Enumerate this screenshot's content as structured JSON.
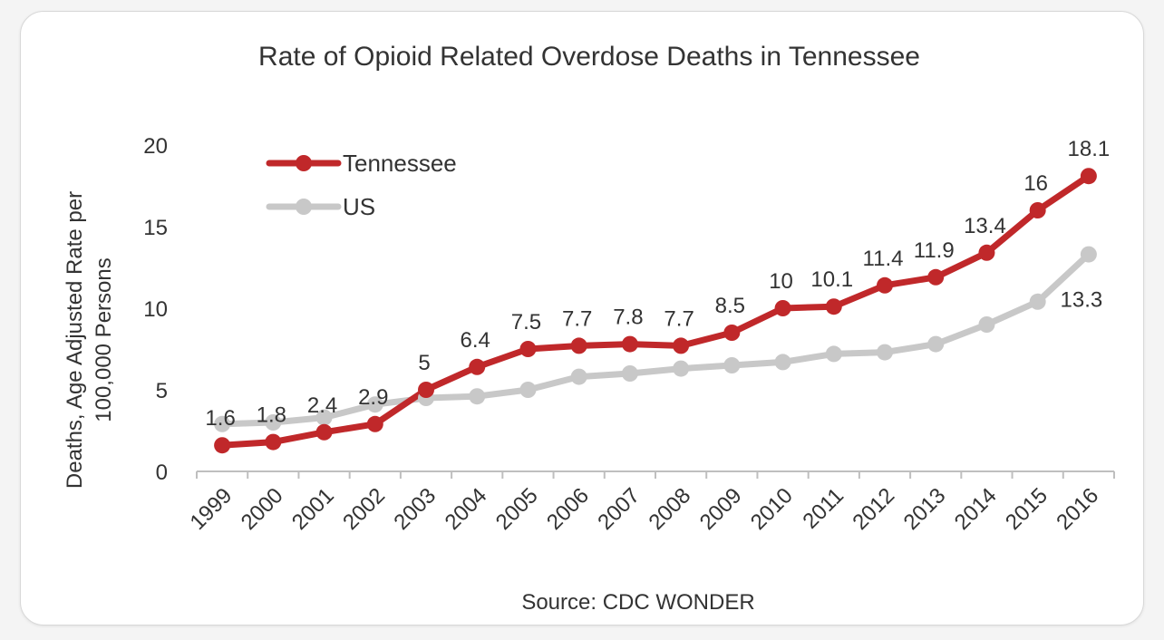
{
  "chart_data": {
    "type": "line",
    "title": "Rate of Opioid Related Overdose Deaths in Tennessee",
    "ylabel_lines": [
      "Deaths, Age Adjusted Rate per",
      "100,000 Persons"
    ],
    "xlabel": "",
    "source": "Source: CDC WONDER",
    "ylim": [
      0,
      20
    ],
    "yticks": [
      0,
      5,
      10,
      15,
      20
    ],
    "categories": [
      "1999",
      "2000",
      "2001",
      "2002",
      "2003",
      "2004",
      "2005",
      "2006",
      "2007",
      "2008",
      "2009",
      "2010",
      "2011",
      "2012",
      "2013",
      "2014",
      "2015",
      "2016"
    ],
    "series": [
      {
        "name": "Tennessee",
        "color": "#c0282a",
        "values": [
          1.6,
          1.8,
          2.4,
          2.9,
          5,
          6.4,
          7.5,
          7.7,
          7.8,
          7.7,
          8.5,
          10,
          10.1,
          11.4,
          11.9,
          13.4,
          16,
          18.1
        ],
        "labels": [
          "1.6",
          "1.8",
          "2.4",
          "2.9",
          "5",
          "6.4",
          "7.5",
          "7.7",
          "7.8",
          "7.7",
          "8.5",
          "10",
          "10.1",
          "11.4",
          "11.9",
          "13.4",
          "16",
          "18.1"
        ]
      },
      {
        "name": "US",
        "color": "#c8c8c8",
        "values": [
          2.9,
          3.0,
          3.3,
          4.1,
          4.5,
          4.6,
          5.0,
          5.8,
          6.0,
          6.3,
          6.5,
          6.7,
          7.2,
          7.3,
          7.8,
          9.0,
          10.4,
          13.3
        ],
        "labels": [
          "",
          "",
          "",
          "",
          "",
          "",
          "",
          "",
          "",
          "",
          "",
          "",
          "",
          "",
          "",
          "",
          "",
          "13.3"
        ]
      }
    ],
    "legend_position": "top-left"
  }
}
